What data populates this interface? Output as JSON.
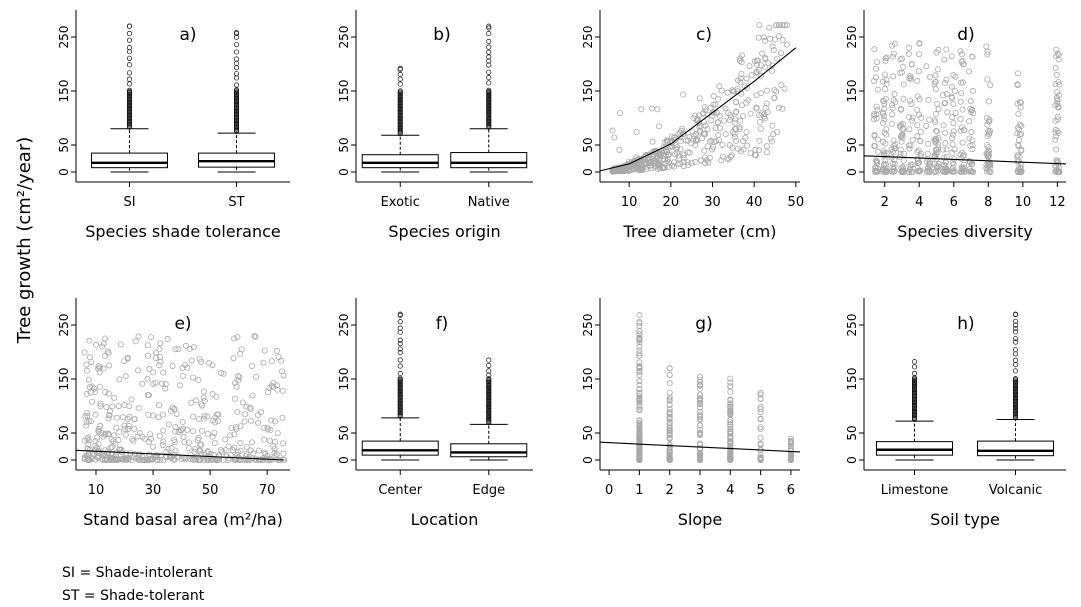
{
  "figure": {
    "y_axis_label": "Tree growth (cm²/year)",
    "notes": [
      "SI = Shade-intolerant",
      "ST = Shade-tolerant"
    ]
  },
  "chart_data": [
    {
      "panel": "a)",
      "type": "box",
      "xlabel": "Species shade tolerance",
      "categories": [
        "SI",
        "ST"
      ],
      "ylim": [
        0,
        300
      ],
      "yticks": [
        0,
        50,
        150,
        250
      ],
      "boxes": [
        {
          "min": 0,
          "q1": 8,
          "median": 17,
          "q3": 35,
          "whisker_high": 80,
          "outlier_max": 270
        },
        {
          "min": 0,
          "q1": 9,
          "median": 20,
          "q3": 35,
          "whisker_high": 72,
          "outlier_max": 258
        }
      ]
    },
    {
      "panel": "b)",
      "type": "box",
      "xlabel": "Species origin",
      "categories": [
        "Exotic",
        "Native"
      ],
      "ylim": [
        0,
        300
      ],
      "yticks": [
        0,
        50,
        150,
        250
      ],
      "boxes": [
        {
          "min": 0,
          "q1": 8,
          "median": 17,
          "q3": 32,
          "whisker_high": 68,
          "outlier_max": 192
        },
        {
          "min": 0,
          "q1": 8,
          "median": 17,
          "q3": 36,
          "whisker_high": 80,
          "outlier_max": 270
        }
      ]
    },
    {
      "panel": "c)",
      "type": "scatter",
      "xlabel": "Tree diameter (cm)",
      "xlim": [
        3,
        51
      ],
      "xticks": [
        10,
        20,
        30,
        40,
        50
      ],
      "ylim": [
        0,
        300
      ],
      "yticks": [
        0,
        50,
        150,
        250
      ],
      "trend": {
        "type": "curve",
        "points": [
          [
            3,
            2
          ],
          [
            10,
            15
          ],
          [
            20,
            52
          ],
          [
            30,
            110
          ],
          [
            40,
            168
          ],
          [
            50,
            230
          ]
        ]
      }
    },
    {
      "panel": "d)",
      "type": "scatter",
      "xlabel": "Species diversity",
      "xlim": [
        0.8,
        12.5
      ],
      "xticks": [
        2,
        4,
        6,
        8,
        10,
        12
      ],
      "ylim": [
        0,
        300
      ],
      "yticks": [
        0,
        50,
        150,
        250
      ],
      "trend": {
        "type": "line",
        "points": [
          [
            0.8,
            30
          ],
          [
            12.5,
            15
          ]
        ]
      }
    },
    {
      "panel": "e)",
      "type": "scatter",
      "xlabel": "Stand basal area (m²/ha)",
      "xlim": [
        3,
        78
      ],
      "xticks": [
        10,
        30,
        50,
        70
      ],
      "ylim": [
        0,
        300
      ],
      "yticks": [
        0,
        50,
        150,
        250
      ],
      "trend": {
        "type": "line",
        "points": [
          [
            3,
            18
          ],
          [
            76,
            0
          ]
        ]
      }
    },
    {
      "panel": "f)",
      "type": "box",
      "xlabel": "Location",
      "categories": [
        "Center",
        "Edge"
      ],
      "ylim": [
        0,
        300
      ],
      "yticks": [
        0,
        50,
        150,
        250
      ],
      "boxes": [
        {
          "min": 0,
          "q1": 9,
          "median": 18,
          "q3": 35,
          "whisker_high": 78,
          "outlier_max": 270
        },
        {
          "min": 0,
          "q1": 6,
          "median": 14,
          "q3": 30,
          "whisker_high": 66,
          "outlier_max": 185
        }
      ]
    },
    {
      "panel": "g)",
      "type": "scatter",
      "xlabel": "Slope",
      "xlim": [
        -0.3,
        6.3
      ],
      "xticks": [
        0,
        1,
        2,
        3,
        4,
        5,
        6
      ],
      "ylim": [
        0,
        300
      ],
      "yticks": [
        0,
        50,
        150,
        250
      ],
      "trend": {
        "type": "line",
        "points": [
          [
            -0.3,
            33
          ],
          [
            6.3,
            15
          ]
        ]
      }
    },
    {
      "panel": "h)",
      "type": "box",
      "xlabel": "Soil type",
      "categories": [
        "Limestone",
        "Volcanic"
      ],
      "ylim": [
        0,
        300
      ],
      "yticks": [
        0,
        50,
        150,
        250
      ],
      "boxes": [
        {
          "min": 0,
          "q1": 9,
          "median": 19,
          "q3": 34,
          "whisker_high": 72,
          "outlier_max": 182
        },
        {
          "min": 0,
          "q1": 8,
          "median": 17,
          "q3": 35,
          "whisker_high": 75,
          "outlier_max": 270
        }
      ]
    }
  ]
}
